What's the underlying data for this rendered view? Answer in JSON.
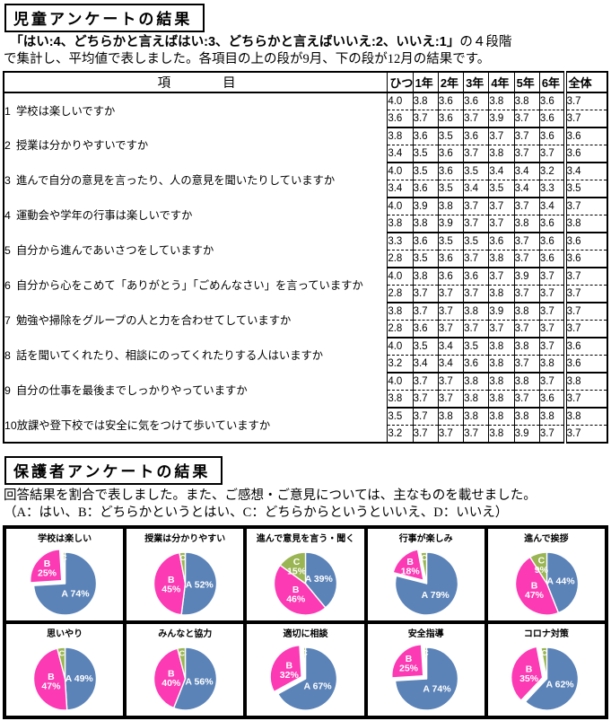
{
  "colors": {
    "slice_a": "#5b83b8",
    "slice_b": "#fb3ab4",
    "slice_c": "#9ab553",
    "border": "#000000"
  },
  "section1": {
    "title": "児童アンケートの結果",
    "intro_quote": "　「はい:4、どちらかと言えばはい:3、どちらかと言えばいいえ:2、いいえ:1」",
    "intro_tail": "の４段階",
    "intro_line2": "で集計し、平均値で表しました。各項目の上の段が9月、下の段が12月の結果です。",
    "table": {
      "item_header": "項　　　　目",
      "col_headers": [
        "ひつ",
        "1年",
        "2年",
        "3年",
        "4年",
        "5年",
        "6年",
        "全体"
      ],
      "rows": [
        {
          "no": "1",
          "label": "学校は楽しいですか",
          "sep": [
            "4.0",
            "3.8",
            "3.6",
            "3.6",
            "3.8",
            "3.8",
            "3.6",
            "3.7"
          ],
          "dec": [
            "3.6",
            "3.7",
            "3.6",
            "3.7",
            "3.9",
            "3.7",
            "3.6",
            "3.7"
          ]
        },
        {
          "no": "2",
          "label": "授業は分かりやすいですか",
          "sep": [
            "3.8",
            "3.6",
            "3.5",
            "3.6",
            "3.7",
            "3.7",
            "3.6",
            "3.6"
          ],
          "dec": [
            "3.4",
            "3.5",
            "3.6",
            "3.7",
            "3.8",
            "3.7",
            "3.7",
            "3.6"
          ]
        },
        {
          "no": "3",
          "label": "進んで自分の意見を言ったり、人の意見を聞いたりしていますか",
          "sep": [
            "4.0",
            "3.5",
            "3.6",
            "3.5",
            "3.4",
            "3.4",
            "3.2",
            "3.4"
          ],
          "dec": [
            "3.4",
            "3.6",
            "3.5",
            "3.4",
            "3.5",
            "3.4",
            "3.3",
            "3.5"
          ]
        },
        {
          "no": "4",
          "label": "運動会や学年の行事は楽しいですか",
          "sep": [
            "4.0",
            "3.9",
            "3.8",
            "3.7",
            "3.7",
            "3.7",
            "3.4",
            "3.7"
          ],
          "dec": [
            "3.8",
            "3.8",
            "3.9",
            "3.7",
            "3.7",
            "3.8",
            "3.6",
            "3.8"
          ]
        },
        {
          "no": "5",
          "label": "自分から進んであいさつをしていますか",
          "sep": [
            "3.3",
            "3.6",
            "3.5",
            "3.5",
            "3.6",
            "3.7",
            "3.6",
            "3.6"
          ],
          "dec": [
            "2.8",
            "3.5",
            "3.6",
            "3.7",
            "3.8",
            "3.7",
            "3.6",
            "3.6"
          ]
        },
        {
          "no": "6",
          "label": "自分から心をこめて「ありがとう」「ごめんなさい」を言っていますか",
          "sep": [
            "4.0",
            "3.8",
            "3.6",
            "3.6",
            "3.7",
            "3.9",
            "3.7",
            "3.7"
          ],
          "dec": [
            "2.8",
            "3.7",
            "3.7",
            "3.7",
            "3.8",
            "3.7",
            "3.7",
            "3.7"
          ]
        },
        {
          "no": "7",
          "label": "勉強や掃除をグループの人と力を合わせてしていますか",
          "sep": [
            "3.8",
            "3.7",
            "3.7",
            "3.8",
            "3.9",
            "3.8",
            "3.7",
            "3.7"
          ],
          "dec": [
            "2.8",
            "3.6",
            "3.7",
            "3.7",
            "3.7",
            "3.7",
            "3.7",
            "3.7"
          ]
        },
        {
          "no": "8",
          "label": "話を聞いてくれたり、相談にのってくれたりする人はいますか",
          "sep": [
            "4.0",
            "3.5",
            "3.4",
            "3.5",
            "3.8",
            "3.8",
            "3.7",
            "3.6"
          ],
          "dec": [
            "3.2",
            "3.4",
            "3.4",
            "3.6",
            "3.8",
            "3.7",
            "3.8",
            "3.6"
          ]
        },
        {
          "no": "9",
          "label": "自分の仕事を最後までしっかりやっていますか",
          "sep": [
            "4.0",
            "3.7",
            "3.7",
            "3.8",
            "3.8",
            "3.8",
            "3.7",
            "3.8"
          ],
          "dec": [
            "3.8",
            "3.7",
            "3.7",
            "3.8",
            "3.8",
            "3.7",
            "3.6",
            "3.7"
          ]
        },
        {
          "no": "10",
          "label": "放課や登下校では安全に気をつけて歩いていますか",
          "sep": [
            "3.5",
            "3.7",
            "3.8",
            "3.8",
            "3.8",
            "3.8",
            "3.8",
            "3.8"
          ],
          "dec": [
            "3.2",
            "3.7",
            "3.7",
            "3.7",
            "3.8",
            "3.9",
            "3.7",
            "3.7"
          ]
        }
      ]
    }
  },
  "section2": {
    "title": "保護者アンケートの結果",
    "intro_line1": "回答結果を割合で表しました。また、ご感想・ご意見については、主なものを載せました。",
    "intro_line2": "（A：はい、B：どちらかというとはい、C：どちらからというといいえ、D：いいえ）"
  },
  "chart_data": [
    {
      "type": "pie",
      "title": "学校は楽しい",
      "slices": [
        {
          "key": "A",
          "pct": 74,
          "label": "A 74%"
        },
        {
          "key": "B",
          "pct": 25,
          "label": "B|25%",
          "exploded": true
        },
        {
          "key": "C",
          "pct": 1,
          "label": "C"
        }
      ]
    },
    {
      "type": "pie",
      "title": "授業は分かりやすい",
      "slices": [
        {
          "key": "A",
          "pct": 52,
          "label": "A 52%"
        },
        {
          "key": "B",
          "pct": 45,
          "label": "B|45%"
        },
        {
          "key": "C",
          "pct": 3,
          "label": "C"
        }
      ]
    },
    {
      "type": "pie",
      "title": "進んで意見を言う・聞く",
      "slices": [
        {
          "key": "A",
          "pct": 39,
          "label": "A 39%"
        },
        {
          "key": "B",
          "pct": 46,
          "label": "B|46%"
        },
        {
          "key": "C",
          "pct": 15,
          "label": "C|15%"
        }
      ]
    },
    {
      "type": "pie",
      "title": "行事が楽しみ",
      "slices": [
        {
          "key": "A",
          "pct": 79,
          "label": "A 79%"
        },
        {
          "key": "B",
          "pct": 18,
          "label": "B|18%",
          "exploded": true
        },
        {
          "key": "C",
          "pct": 3,
          "label": "C"
        }
      ]
    },
    {
      "type": "pie",
      "title": "進んで挨拶",
      "slices": [
        {
          "key": "A",
          "pct": 44,
          "label": "A 44%"
        },
        {
          "key": "B",
          "pct": 47,
          "label": "B|47%"
        },
        {
          "key": "C",
          "pct": 9,
          "label": "C|9%"
        }
      ]
    },
    {
      "type": "pie",
      "title": "思いやり",
      "slices": [
        {
          "key": "A",
          "pct": 49,
          "label": "A 49%"
        },
        {
          "key": "B",
          "pct": 47,
          "label": "B|47%"
        },
        {
          "key": "C",
          "pct": 4,
          "label": "C"
        }
      ]
    },
    {
      "type": "pie",
      "title": "みんなと協力",
      "slices": [
        {
          "key": "A",
          "pct": 56,
          "label": "A 56%"
        },
        {
          "key": "B",
          "pct": 40,
          "label": "B|40%"
        },
        {
          "key": "C",
          "pct": 4,
          "label": "C"
        }
      ]
    },
    {
      "type": "pie",
      "title": "適切に相談",
      "slices": [
        {
          "key": "A",
          "pct": 67,
          "label": "A 67%"
        },
        {
          "key": "B",
          "pct": 32,
          "label": "B|32%",
          "exploded": true
        },
        {
          "key": "C",
          "pct": 1,
          "label": "C"
        }
      ]
    },
    {
      "type": "pie",
      "title": "安全指導",
      "slices": [
        {
          "key": "A",
          "pct": 74,
          "label": "A 74%"
        },
        {
          "key": "B",
          "pct": 25,
          "label": "B|25%",
          "exploded": true
        },
        {
          "key": "C",
          "pct": 1,
          "label": "C"
        }
      ]
    },
    {
      "type": "pie",
      "title": "コロナ対策",
      "slices": [
        {
          "key": "A",
          "pct": 62,
          "label": "A 62%"
        },
        {
          "key": "B",
          "pct": 35,
          "label": "B|35%",
          "exploded": true
        },
        {
          "key": "C",
          "pct": 3,
          "label": "C"
        }
      ]
    }
  ]
}
